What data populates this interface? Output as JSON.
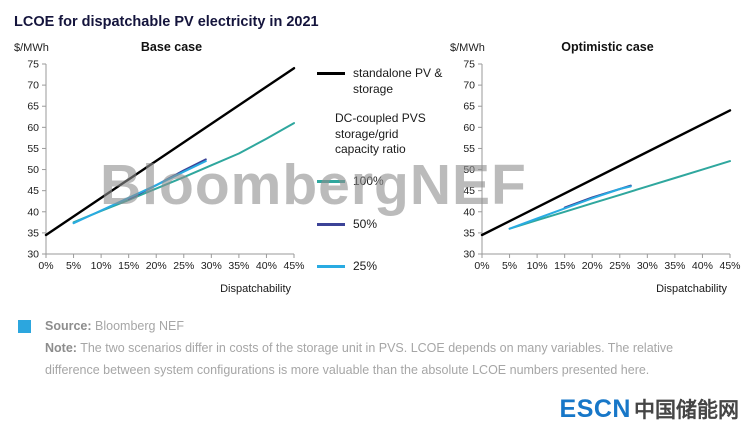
{
  "page_title": "LCOE for dispatchable PV electricity in 2021",
  "watermark": "BloombergNEF",
  "legend": {
    "standalone": {
      "label": "standalone PV & storage",
      "color": "#000000"
    },
    "group_label": "DC-coupled PVS storage/grid capacity ratio",
    "items": [
      {
        "label": "100%",
        "color": "#2fa79e"
      },
      {
        "label": "50%",
        "color": "#3c4397"
      },
      {
        "label": "25%",
        "color": "#29abe2"
      }
    ]
  },
  "chart_data": [
    {
      "type": "line",
      "title": "Base case",
      "y_unit": "$/MWh",
      "xlabel": "Dispatchability",
      "xlim": [
        0,
        45
      ],
      "ylim": [
        30,
        75
      ],
      "yticks": [
        30,
        35,
        40,
        45,
        50,
        55,
        60,
        65,
        70,
        75
      ],
      "xtick_labels": [
        "0%",
        "5%",
        "10%",
        "15%",
        "20%",
        "25%",
        "30%",
        "35%",
        "40%",
        "45%"
      ],
      "grid": false,
      "series": [
        {
          "name": "standalone PV & storage",
          "color": "#000000",
          "width": 2.4,
          "x": [
            0,
            45
          ],
          "y": [
            34.5,
            74
          ]
        },
        {
          "name": "100%",
          "color": "#2fa79e",
          "width": 2,
          "x": [
            5,
            10,
            15,
            20,
            25,
            30,
            35,
            40,
            45
          ],
          "y": [
            37.5,
            40.2,
            42.8,
            45.5,
            48.2,
            51,
            53.8,
            57.3,
            61
          ]
        },
        {
          "name": "50%",
          "color": "#3c4397",
          "width": 2,
          "x": [
            15,
            20,
            25,
            29
          ],
          "y": [
            43,
            46.3,
            49.8,
            52.4
          ]
        },
        {
          "name": "25%",
          "color": "#29abe2",
          "width": 2,
          "x": [
            5,
            10,
            15,
            20,
            25,
            29
          ],
          "y": [
            37.3,
            40.3,
            43.3,
            46.3,
            49.5,
            52
          ]
        }
      ]
    },
    {
      "type": "line",
      "title": "Optimistic case",
      "y_unit": "$/MWh",
      "xlabel": "Dispatchability",
      "xlim": [
        0,
        45
      ],
      "ylim": [
        30,
        75
      ],
      "yticks": [
        30,
        35,
        40,
        45,
        50,
        55,
        60,
        65,
        70,
        75
      ],
      "xtick_labels": [
        "0%",
        "5%",
        "10%",
        "15%",
        "20%",
        "25%",
        "30%",
        "35%",
        "40%",
        "45%"
      ],
      "grid": false,
      "series": [
        {
          "name": "standalone PV & storage",
          "color": "#000000",
          "width": 2.4,
          "x": [
            0,
            45
          ],
          "y": [
            34.5,
            64
          ]
        },
        {
          "name": "100%",
          "color": "#2fa79e",
          "width": 2,
          "x": [
            5,
            10,
            15,
            20,
            25,
            30,
            35,
            40,
            45
          ],
          "y": [
            36,
            38,
            40,
            42,
            44,
            46,
            48,
            50,
            52
          ]
        },
        {
          "name": "50%",
          "color": "#3c4397",
          "width": 2,
          "x": [
            15,
            20,
            25,
            27
          ],
          "y": [
            41,
            43.4,
            45.4,
            46.2
          ]
        },
        {
          "name": "25%",
          "color": "#29abe2",
          "width": 2,
          "x": [
            5,
            10,
            15,
            20,
            25,
            27
          ],
          "y": [
            36,
            38.4,
            40.8,
            43.2,
            45.4,
            46
          ]
        }
      ]
    }
  ],
  "footer": {
    "source_label": "Source:",
    "source_text": "Bloomberg NEF",
    "note_label": "Note:",
    "note_text": "The two scenarios differ in costs of the storage unit in PVS. LCOE depends on many variables. The relative difference between system configurations is more valuable than the absolute LCOE numbers presented here."
  },
  "logo": {
    "text_en": "ESCN",
    "text_zh": "中国储能网",
    "accent_color": "#1777c8"
  }
}
